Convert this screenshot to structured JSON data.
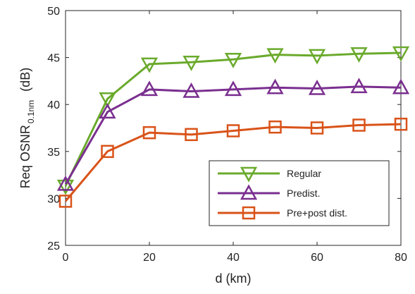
{
  "chart_data": {
    "type": "line",
    "xlabel": "d (km)",
    "ylabel_main": "Req OSNR",
    "ylabel_sub": "0.1nm",
    "ylabel_unit": "(dB)",
    "xlim": [
      0,
      80
    ],
    "ylim": [
      25,
      50
    ],
    "xticks": [
      0,
      20,
      40,
      60,
      80
    ],
    "yticks": [
      25,
      30,
      35,
      40,
      45,
      50
    ],
    "grid": false,
    "legend_position": "bottom-right",
    "x": [
      0,
      10,
      20,
      30,
      40,
      50,
      60,
      70,
      80
    ],
    "series": [
      {
        "name": "Regular",
        "marker": "triangle-down",
        "color": "#6aaa2c",
        "values": [
          31.3,
          40.6,
          44.3,
          44.5,
          44.8,
          45.3,
          45.2,
          45.4,
          45.5
        ]
      },
      {
        "name": "Predist.",
        "marker": "triangle-up",
        "color": "#7a2f8f",
        "values": [
          31.5,
          39.2,
          41.6,
          41.4,
          41.6,
          41.8,
          41.7,
          41.9,
          41.8
        ]
      },
      {
        "name": "Pre+post dist.",
        "marker": "square",
        "color": "#d95319",
        "values": [
          29.7,
          35.0,
          37.0,
          36.8,
          37.2,
          37.6,
          37.5,
          37.8,
          37.9
        ]
      }
    ]
  }
}
